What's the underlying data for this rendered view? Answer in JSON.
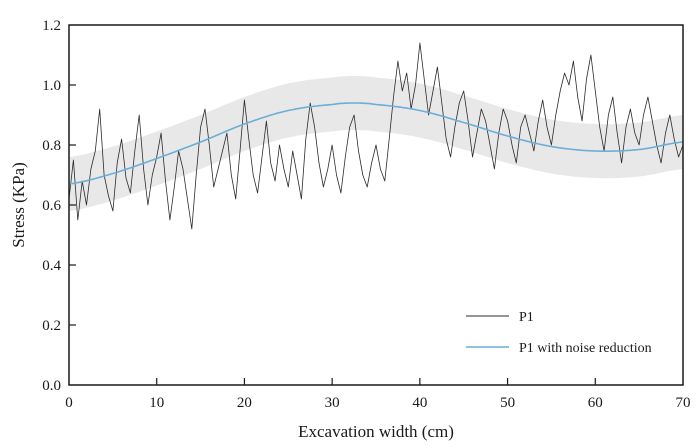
{
  "chart_data": {
    "type": "line",
    "title": "",
    "xlabel": "Excavation width (cm)",
    "ylabel": "Stress (KPa)",
    "xlim": [
      0,
      70
    ],
    "ylim": [
      0.0,
      1.2
    ],
    "xticks": [
      0,
      10,
      20,
      30,
      40,
      50,
      60,
      70
    ],
    "xtick_labels": [
      "0",
      "10",
      "20",
      "30",
      "40",
      "50",
      "60",
      "70"
    ],
    "yticks": [
      0.0,
      0.2,
      0.4,
      0.6,
      0.8,
      1.0,
      1.2
    ],
    "ytick_labels": [
      "0.0",
      "0.2",
      "0.4",
      "0.6",
      "0.8",
      "1.0",
      "1.2"
    ],
    "grid": false,
    "legend_position": "bottom-right",
    "series": [
      {
        "name": "P1",
        "color": "#2b2b2b",
        "x_step": 0.5,
        "x_start": 0,
        "values": [
          0.62,
          0.75,
          0.55,
          0.68,
          0.6,
          0.72,
          0.78,
          0.92,
          0.7,
          0.63,
          0.58,
          0.74,
          0.82,
          0.69,
          0.64,
          0.78,
          0.9,
          0.72,
          0.6,
          0.7,
          0.76,
          0.84,
          0.68,
          0.55,
          0.66,
          0.78,
          0.72,
          0.62,
          0.52,
          0.7,
          0.86,
          0.92,
          0.8,
          0.66,
          0.72,
          0.78,
          0.84,
          0.7,
          0.62,
          0.78,
          0.95,
          0.82,
          0.7,
          0.64,
          0.76,
          0.88,
          0.74,
          0.68,
          0.8,
          0.72,
          0.66,
          0.78,
          0.7,
          0.62,
          0.82,
          0.94,
          0.86,
          0.74,
          0.66,
          0.72,
          0.8,
          0.7,
          0.64,
          0.76,
          0.86,
          0.9,
          0.78,
          0.7,
          0.66,
          0.74,
          0.8,
          0.72,
          0.68,
          0.82,
          0.96,
          1.08,
          0.98,
          1.04,
          0.92,
          1.0,
          1.14,
          1.02,
          0.9,
          0.98,
          1.06,
          0.94,
          0.82,
          0.76,
          0.86,
          0.94,
          0.98,
          0.88,
          0.76,
          0.84,
          0.92,
          0.88,
          0.8,
          0.72,
          0.84,
          0.92,
          0.88,
          0.8,
          0.74,
          0.86,
          0.9,
          0.84,
          0.78,
          0.88,
          0.95,
          0.86,
          0.8,
          0.9,
          0.98,
          1.04,
          1.0,
          1.08,
          0.96,
          0.88,
          1.02,
          1.1,
          0.98,
          0.86,
          0.78,
          0.9,
          0.96,
          0.84,
          0.74,
          0.86,
          0.92,
          0.84,
          0.8,
          0.9,
          0.96,
          0.88,
          0.8,
          0.74,
          0.84,
          0.9,
          0.82,
          0.76,
          0.8
        ]
      },
      {
        "name": "P1 with noise reduction",
        "color": "#6baed6",
        "x": [
          0,
          5,
          10,
          15,
          20,
          25,
          30,
          32.5,
          35,
          40,
          45,
          50,
          55,
          60,
          65,
          70
        ],
        "values": [
          0.67,
          0.705,
          0.755,
          0.81,
          0.87,
          0.915,
          0.935,
          0.94,
          0.935,
          0.915,
          0.875,
          0.83,
          0.795,
          0.78,
          0.785,
          0.81
        ]
      }
    ],
    "confidence_band": {
      "name": "noise reduction band",
      "color": "#e8e8e8",
      "half_width": 0.09
    },
    "legend": [
      {
        "label": "P1",
        "color": "#2b2b2b"
      },
      {
        "label": "P1 with noise reduction",
        "color": "#6baed6"
      }
    ]
  }
}
